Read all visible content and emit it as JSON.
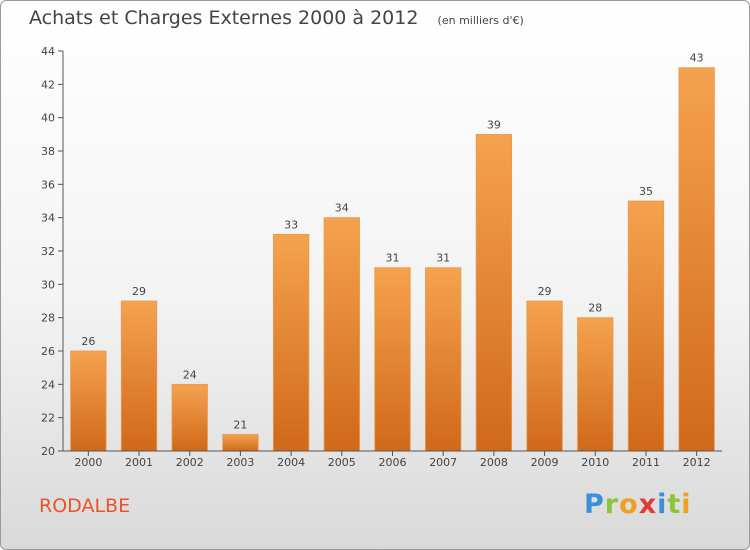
{
  "header": {
    "title": "Achats et Charges Externes 2000 à 2012",
    "unit": "(en milliers d'€)"
  },
  "footer": {
    "commune": "RODALBE",
    "logo_text": "Proxiti"
  },
  "colors": {
    "bar_top": "#f5a24f",
    "bar_bottom": "#d0691a",
    "bar_edge": "#e89a50",
    "axis": "#555555",
    "grid": "#cccccc",
    "commune": "#e8542a"
  },
  "chart_data": {
    "type": "bar",
    "categories": [
      "2000",
      "2001",
      "2002",
      "2003",
      "2004",
      "2005",
      "2006",
      "2007",
      "2008",
      "2009",
      "2010",
      "2011",
      "2012"
    ],
    "values": [
      26,
      29,
      24,
      21,
      33,
      34,
      31,
      31,
      39,
      29,
      28,
      35,
      43
    ],
    "title": "Achats et Charges Externes 2000 à 2012",
    "subtitle": "(en milliers d'€)",
    "xlabel": "",
    "ylabel": "",
    "ylim": [
      20,
      44
    ],
    "yticks": [
      20,
      22,
      24,
      26,
      28,
      30,
      32,
      34,
      36,
      38,
      40,
      42,
      44
    ],
    "grid": false,
    "data_labels": true
  }
}
